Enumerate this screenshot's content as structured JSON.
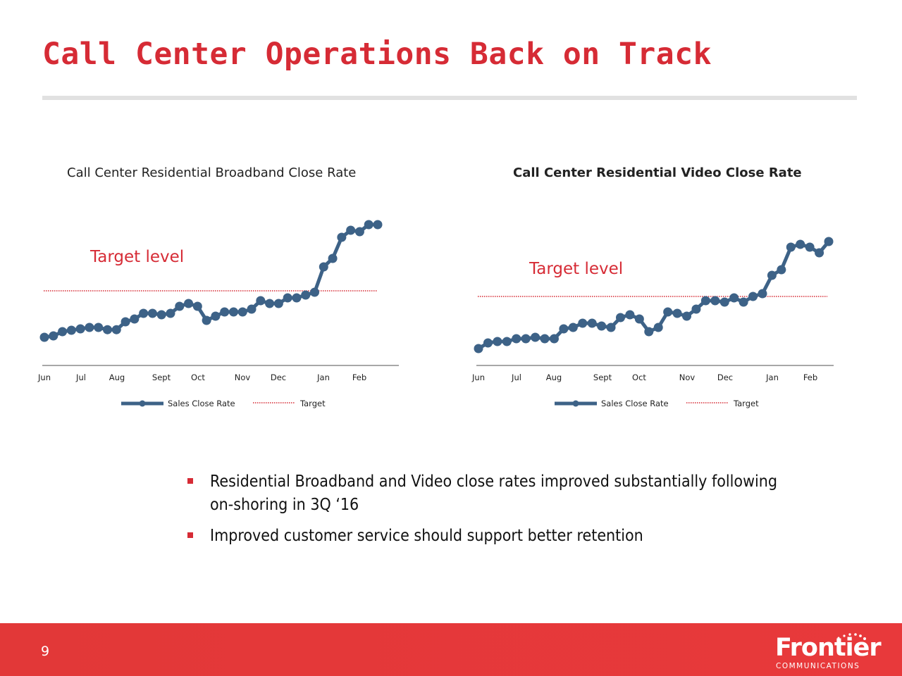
{
  "slide": {
    "title": "Call Center Operations Back on Track",
    "page_number": "9"
  },
  "bullets": [
    "Residential Broadband and Video close rates improved substantially following on-shoring in 3Q ‘16",
    "Improved customer service should support better retention"
  ],
  "logo": {
    "name": "Frontier",
    "sub": "COMMUNICATIONS"
  },
  "colors": {
    "brand_red": "#d62b35",
    "series_blue": "#3d6287",
    "axis_gray": "#a8a8a8"
  },
  "chart_data": [
    {
      "type": "line",
      "title": "Call Center Residential Broadband Close Rate",
      "target_label": "Target level",
      "x_tick_labels": [
        "Jun",
        "Jul",
        "Aug",
        "Sept",
        "Oct",
        "Nov",
        "Dec",
        "Jan",
        "Feb"
      ],
      "y_axis_labels": "none",
      "grid": false,
      "legend": "bottom",
      "series": [
        {
          "name": "Sales Close Rate",
          "values": [
            10,
            10.5,
            12,
            12.5,
            13,
            13.5,
            13.5,
            12.7,
            12.7,
            15.5,
            16.5,
            18.5,
            18.5,
            18,
            18.5,
            21,
            22,
            21,
            16,
            17.5,
            19,
            19,
            19,
            20,
            23,
            22,
            22,
            24,
            24,
            25,
            26,
            35,
            38,
            45.5,
            48,
            47.5,
            50,
            50
          ]
        },
        {
          "name": "Target",
          "constant": 26.5
        }
      ],
      "ylim": [
        0,
        56
      ]
    },
    {
      "type": "line",
      "title": "Call Center Residential Video Close Rate",
      "target_label": "Target level",
      "x_tick_labels": [
        "Jun",
        "Jul",
        "Aug",
        "Sept",
        "Oct",
        "Nov",
        "Dec",
        "Jan",
        "Feb"
      ],
      "y_axis_labels": "none",
      "grid": false,
      "legend": "bottom",
      "series": [
        {
          "name": "Sales Close Rate",
          "values": [
            6,
            8,
            8.5,
            8.5,
            9.5,
            9.5,
            10,
            9.5,
            9.5,
            13,
            13.5,
            15,
            15,
            14,
            13.5,
            17,
            18,
            16.5,
            12,
            13.5,
            19,
            18.5,
            17.5,
            20,
            23,
            23,
            22.5,
            24,
            22.5,
            24.5,
            25.5,
            32,
            34,
            42,
            43,
            42,
            40,
            44
          ]
        },
        {
          "name": "Target",
          "constant": 24.5
        }
      ],
      "ylim": [
        0,
        56
      ]
    }
  ]
}
